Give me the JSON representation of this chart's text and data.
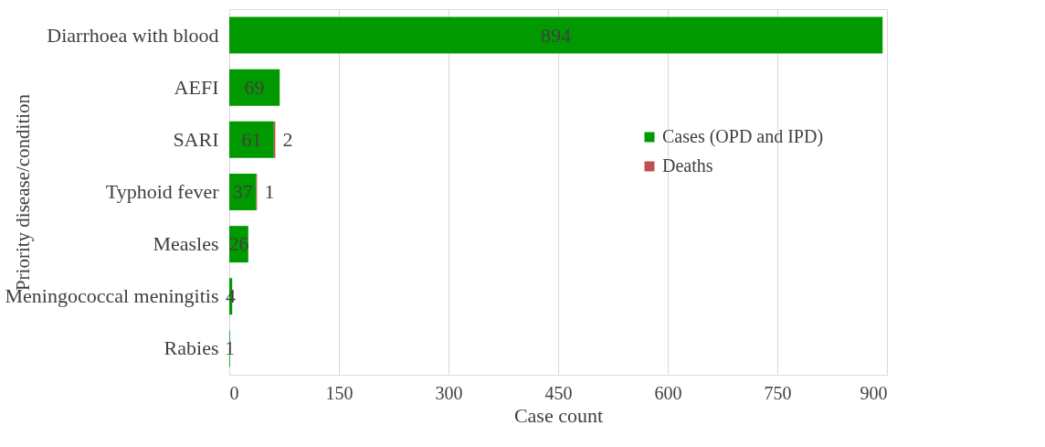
{
  "chart_data": {
    "type": "bar",
    "orientation": "horizontal",
    "stacked": true,
    "categories": [
      "Diarrhoea with blood",
      "AEFI",
      "SARI",
      "Typhoid fever",
      "Measles",
      "Meningococcal meningitis",
      "Rabies"
    ],
    "series": [
      {
        "name": "Cases (OPD and IPD)",
        "color": "#009900",
        "values": [
          894,
          69,
          61,
          37,
          26,
          4,
          1
        ]
      },
      {
        "name": "Deaths",
        "color": "#c0504d",
        "values": [
          null,
          null,
          2,
          1,
          null,
          null,
          null
        ]
      }
    ],
    "xlabel": "Case count",
    "ylabel": "Priority disease/condition",
    "xlim": [
      0,
      900
    ],
    "xticks": [
      0,
      150,
      300,
      450,
      600,
      750,
      900
    ],
    "grid": "x",
    "legend": "right",
    "data_labels": true
  }
}
